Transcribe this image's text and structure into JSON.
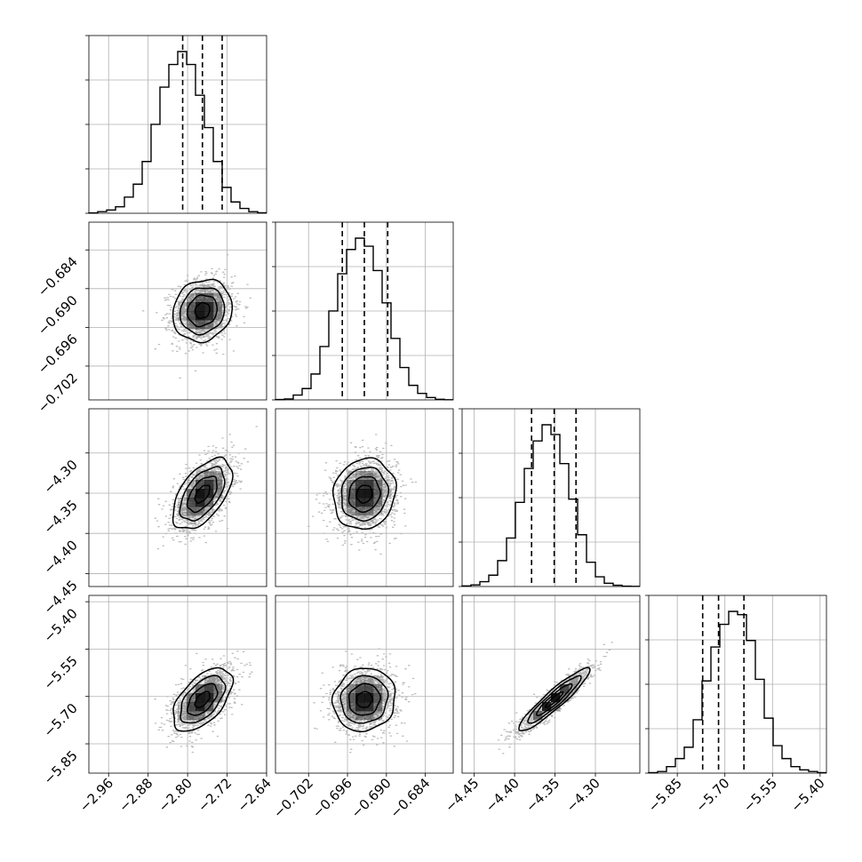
{
  "chart_data": {
    "type": "corner",
    "grid": true,
    "parameters": [
      {
        "range": [
          -3.0,
          -2.64
        ],
        "ticks": [
          "−2.96",
          "−2.88",
          "−2.80",
          "−2.72",
          "−2.64"
        ],
        "tick_values": [
          -2.96,
          -2.88,
          -2.8,
          -2.72,
          -2.64
        ],
        "quantiles": [
          -2.81,
          -2.77,
          -2.73
        ],
        "mean": -2.77,
        "sd": 0.03
      },
      {
        "range": [
          -0.7071,
          -0.6797
        ],
        "ticks": [
          "−0.684",
          "−0.690",
          "−0.696",
          "−0.702"
        ],
        "tick_values": [
          -0.684,
          -0.69,
          -0.696,
          -0.702
        ],
        "bottom_ticks": [
          "−0.702",
          "−0.696",
          "−0.690",
          "−0.684"
        ],
        "bottom_tick_values": [
          -0.702,
          -0.696,
          -0.69,
          -0.684
        ],
        "quantiles": [
          -0.6968,
          -0.6934,
          -0.6898
        ],
        "mean": -0.6934,
        "sd": 0.0024
      },
      {
        "range": [
          -4.465,
          -4.245
        ],
        "ticks": [
          "−4.30",
          "−4.35",
          "−4.40",
          "−4.45"
        ],
        "tick_values": [
          -4.3,
          -4.35,
          -4.4,
          -4.45
        ],
        "bottom_ticks": [
          "−4.45",
          "−4.40",
          "−4.35",
          "−4.30"
        ],
        "bottom_tick_values": [
          -4.45,
          -4.4,
          -4.35,
          -4.3
        ],
        "quantiles": [
          -4.379,
          -4.351,
          -4.324
        ],
        "mean": -4.351,
        "sd": 0.022
      },
      {
        "range": [
          -5.94,
          -5.38
        ],
        "ticks": [
          "−5.40",
          "−5.55",
          "−5.70",
          "−5.85"
        ],
        "tick_values": [
          -5.4,
          -5.55,
          -5.7,
          -5.85
        ],
        "bottom_ticks": [
          "−5.85",
          "−5.70",
          "−5.55",
          "−5.40"
        ],
        "bottom_tick_values": [
          -5.85,
          -5.7,
          -5.55,
          -5.4
        ],
        "quantiles": [
          -5.77,
          -5.72,
          -5.64
        ],
        "mean": -5.71,
        "sd": 0.05
      }
    ],
    "histograms": [
      [
        0.002,
        0.01,
        0.02,
        0.04,
        0.1,
        0.18,
        0.32,
        0.55,
        0.78,
        0.92,
        1.0,
        0.92,
        0.73,
        0.53,
        0.32,
        0.16,
        0.07,
        0.03,
        0.01,
        0.003
      ],
      [
        0.002,
        0.006,
        0.03,
        0.07,
        0.16,
        0.33,
        0.55,
        0.78,
        0.93,
        1.0,
        0.95,
        0.8,
        0.6,
        0.38,
        0.2,
        0.09,
        0.04,
        0.015,
        0.004,
        0.001
      ],
      [
        0.004,
        0.01,
        0.03,
        0.07,
        0.16,
        0.3,
        0.52,
        0.73,
        0.9,
        1.0,
        0.94,
        0.76,
        0.54,
        0.32,
        0.15,
        0.06,
        0.02,
        0.008,
        0.002,
        0.001
      ],
      [
        0.003,
        0.01,
        0.04,
        0.09,
        0.16,
        0.33,
        0.57,
        0.78,
        0.92,
        1.0,
        0.98,
        0.82,
        0.58,
        0.34,
        0.17,
        0.09,
        0.04,
        0.02,
        0.01,
        0.003
      ]
    ],
    "pairs": [
      {
        "x": 0,
        "y": 1,
        "corr": 0.12,
        "mode": [
          -2.76,
          -0.6925
        ]
      },
      {
        "x": 0,
        "y": 2,
        "corr": 0.55,
        "mode": [
          -2.77,
          -4.352
        ]
      },
      {
        "x": 1,
        "y": 2,
        "corr": 0.1,
        "mode": [
          -0.6934,
          -4.352
        ]
      },
      {
        "x": 0,
        "y": 3,
        "corr": 0.55,
        "mode": [
          -2.775,
          -5.705
        ]
      },
      {
        "x": 1,
        "y": 3,
        "corr": 0.08,
        "mode": [
          -0.6932,
          -5.705
        ]
      },
      {
        "x": 2,
        "y": 3,
        "corr": 0.93,
        "mode": [
          -4.35,
          -5.705
        ]
      }
    ],
    "contour_levels_sigma": [
      0.5,
      1.0,
      1.5,
      2.0
    ],
    "colors": {
      "line": "#000000",
      "grid": "#b0b0b0",
      "points": "#bdbdbd",
      "density": "#000000"
    }
  }
}
